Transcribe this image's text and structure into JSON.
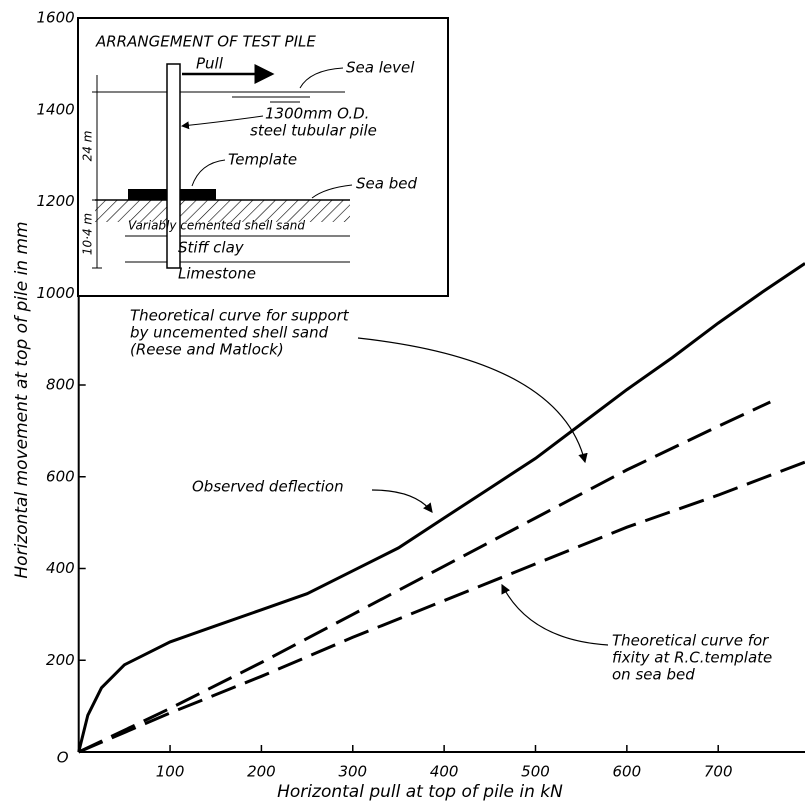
{
  "chart_data": {
    "type": "line",
    "xlabel": "Horizontal pull at top of pile in kN",
    "ylabel": "Horizontal movement at top of pile in mm",
    "xlim": [
      0,
      795
    ],
    "ylim": [
      0,
      1600
    ],
    "xticks": [
      {
        "value": 0,
        "label": "O"
      },
      100,
      200,
      300,
      400,
      500,
      600,
      700
    ],
    "yticks": [
      200,
      400,
      600,
      800,
      1000,
      1200,
      1400,
      1600
    ],
    "grid": false,
    "series": [
      {
        "color": "#000000",
        "style": "solid",
        "x": [
          0,
          10,
          25,
          50,
          100,
          150,
          200,
          250,
          300,
          350,
          400,
          450,
          500,
          550,
          600,
          650,
          700,
          750,
          795
        ],
        "values": [
          0,
          80,
          140,
          190,
          240,
          275,
          310,
          345,
          395,
          445,
          510,
          575,
          640,
          715,
          790,
          860,
          935,
          1005,
          1065
        ]
      },
      {
        "color": "#000000",
        "style": "dashed",
        "x": [
          0,
          100,
          200,
          300,
          400,
          500,
          600,
          700,
          757
        ],
        "values": [
          0,
          95,
          195,
          300,
          405,
          510,
          615,
          710,
          763
        ]
      },
      {
        "color": "#000000",
        "style": "dashed",
        "x": [
          0,
          100,
          200,
          300,
          400,
          500,
          600,
          700,
          795
        ],
        "values": [
          0,
          85,
          165,
          250,
          330,
          410,
          490,
          560,
          632
        ]
      }
    ],
    "annotations": [
      {
        "lines": [
          "Theoretical curve for support",
          "by uncemented shell sand",
          "(Reese and Matlock)"
        ]
      },
      {
        "lines": [
          "Observed deflection"
        ]
      },
      {
        "lines": [
          "Theoretical curve for",
          "fixity at R.C.template",
          "on sea bed"
        ]
      }
    ]
  },
  "inset": {
    "title": "ARRANGEMENT OF TEST PILE",
    "pull": "Pull",
    "sea_level": "Sea level",
    "depth_upper": "24 m",
    "pile_line1": "1300mm O.D.",
    "pile_line2": "steel tubular pile",
    "template": "Template",
    "sea_bed": "Sea bed",
    "depth_lower": "10·4 m",
    "sand": "Variably cemented shell sand",
    "clay": "Stiff clay",
    "limestone": "Limestone"
  }
}
